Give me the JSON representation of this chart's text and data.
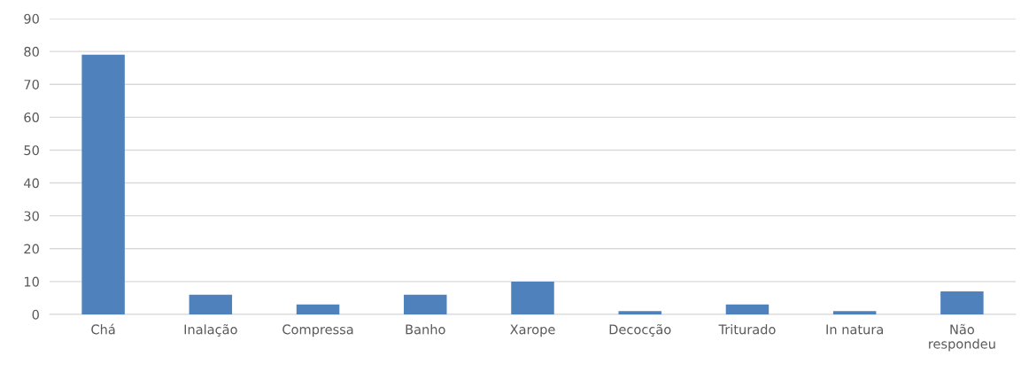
{
  "chart_data": {
    "type": "bar",
    "categories": [
      "Chá",
      "Inalação",
      "Compressa",
      "Banho",
      "Xarope",
      "Decocção",
      "Triturado",
      "In natura",
      "Não\nrespondeu"
    ],
    "values": [
      79,
      6,
      3,
      6,
      10,
      1,
      3,
      1,
      7
    ],
    "color": "#4f81bd",
    "ylim": [
      0,
      90
    ],
    "yticks": [
      0,
      10,
      20,
      30,
      40,
      50,
      60,
      70,
      80,
      90
    ],
    "grid": "y"
  }
}
